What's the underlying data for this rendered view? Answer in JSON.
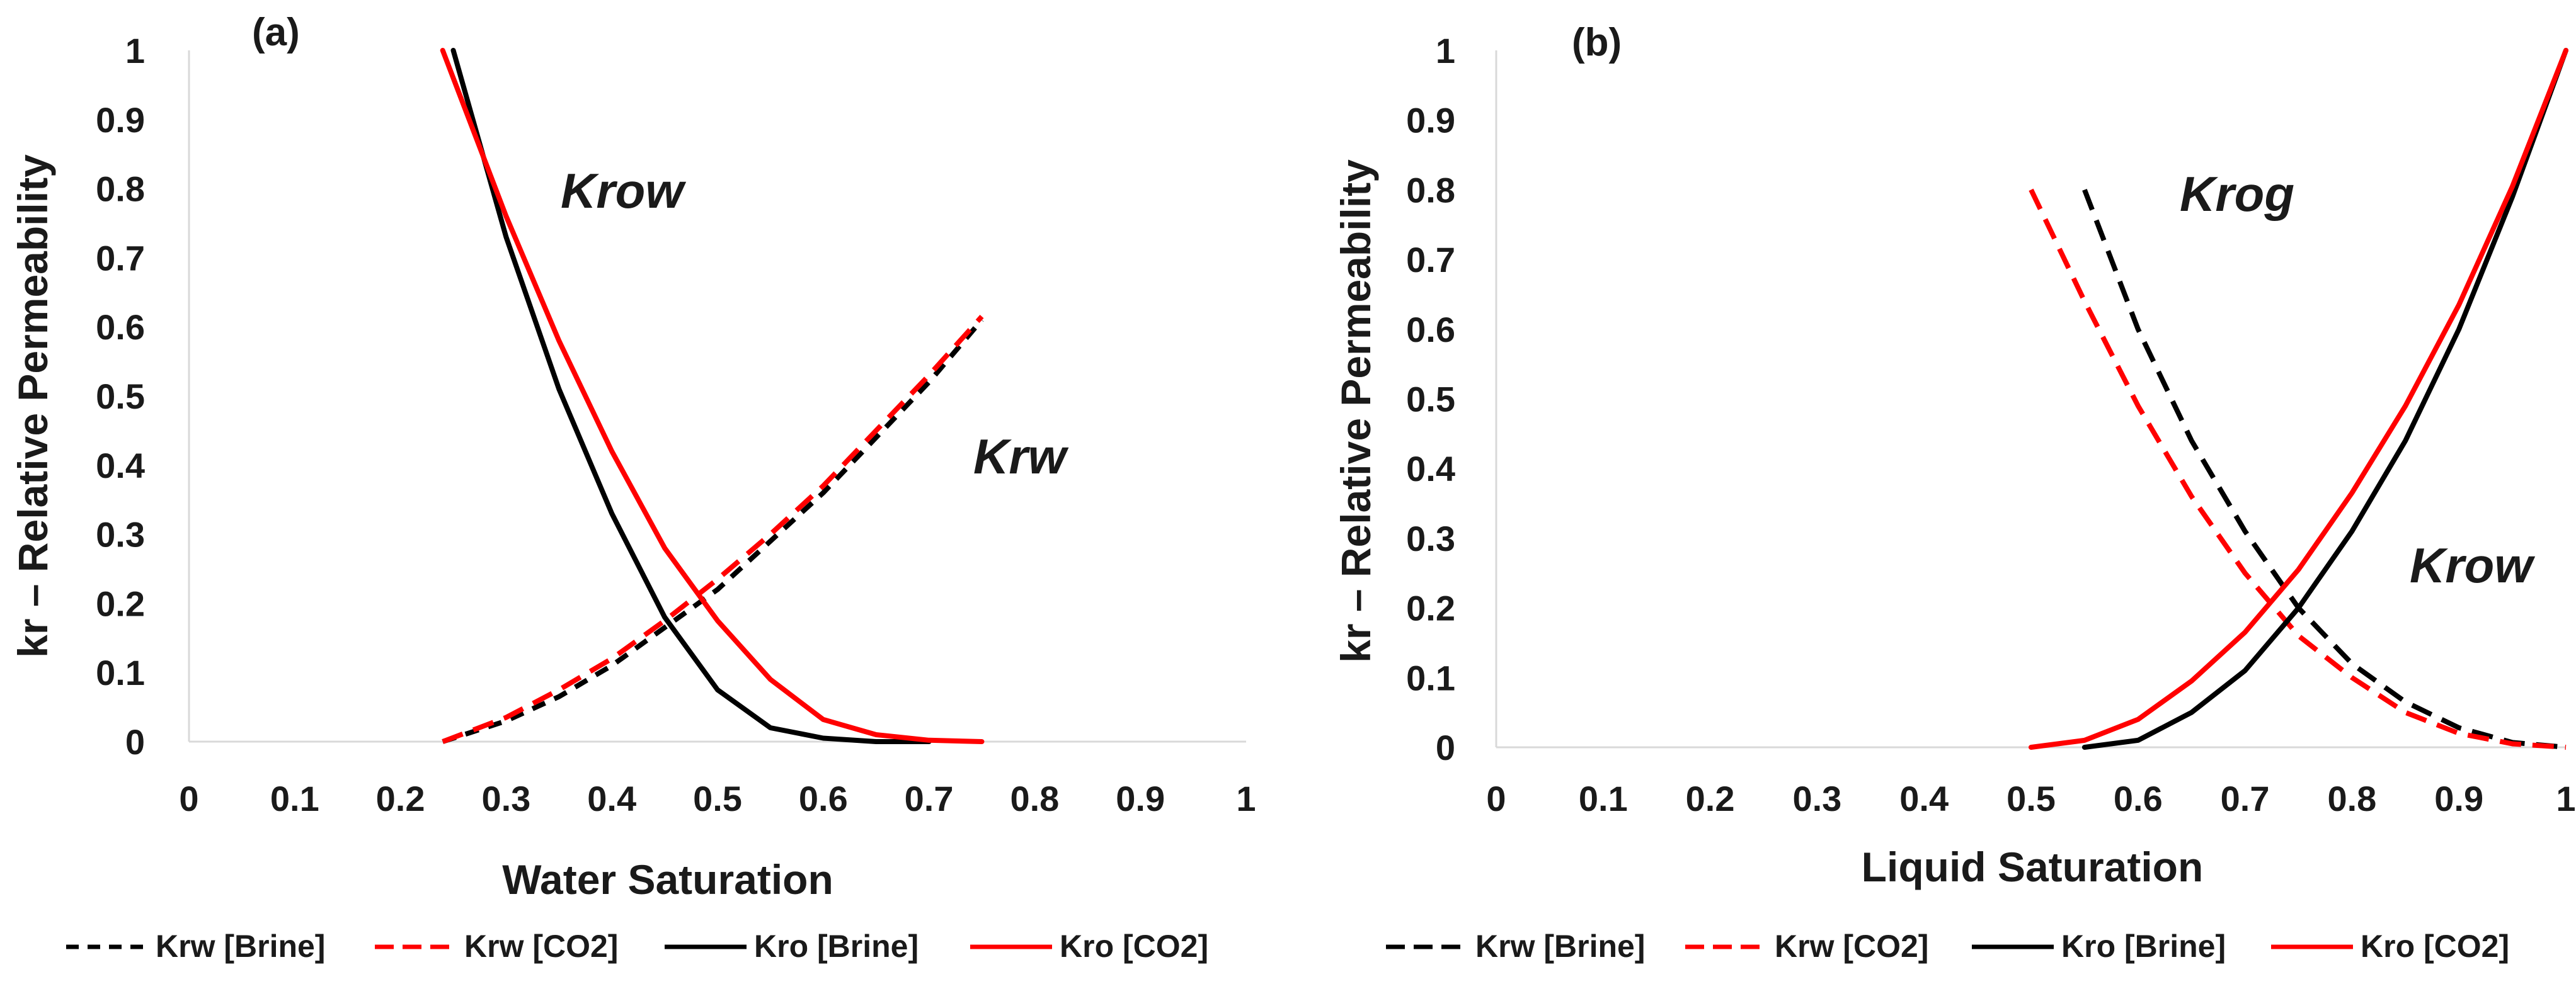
{
  "chart_data": [
    {
      "type": "line",
      "panel_label": "(a)",
      "xlabel": "Water Saturation",
      "ylabel": "kr – Relative Permeability",
      "xlim": [
        0,
        1
      ],
      "ylim": [
        0,
        1
      ],
      "x_ticks": [
        "0",
        "0.1",
        "0.2",
        "0.3",
        "0.4",
        "0.5",
        "0.6",
        "0.7",
        "0.8",
        "0.9",
        "1"
      ],
      "y_ticks": [
        "0",
        "0.1",
        "0.2",
        "0.3",
        "0.4",
        "0.5",
        "0.6",
        "0.7",
        "0.8",
        "0.9",
        "1"
      ],
      "grid": false,
      "annotations": [
        "Krow",
        "Krw"
      ],
      "legend_position": "bottom",
      "series": [
        {
          "name": "Krw [Brine]",
          "color": "#000000",
          "dashed": true,
          "x": [
            0.24,
            0.3,
            0.35,
            0.4,
            0.45,
            0.5,
            0.55,
            0.6,
            0.65,
            0.7,
            0.75
          ],
          "y": [
            0.0,
            0.03,
            0.065,
            0.11,
            0.165,
            0.22,
            0.29,
            0.36,
            0.44,
            0.52,
            0.61
          ]
        },
        {
          "name": "Krw [CO2]",
          "color": "#ff0000",
          "dashed": true,
          "x": [
            0.24,
            0.3,
            0.35,
            0.4,
            0.45,
            0.5,
            0.55,
            0.6,
            0.65,
            0.7,
            0.75
          ],
          "y": [
            0.0,
            0.035,
            0.075,
            0.12,
            0.175,
            0.235,
            0.3,
            0.37,
            0.45,
            0.53,
            0.615
          ]
        },
        {
          "name": "Kro [Brine]",
          "color": "#000000",
          "dashed": false,
          "x": [
            0.25,
            0.3,
            0.35,
            0.4,
            0.45,
            0.5,
            0.55,
            0.6,
            0.65,
            0.7
          ],
          "y": [
            1.0,
            0.73,
            0.51,
            0.33,
            0.18,
            0.075,
            0.02,
            0.005,
            0.0,
            0.0
          ]
        },
        {
          "name": "Kro [CO2]",
          "color": "#ff0000",
          "dashed": false,
          "x": [
            0.24,
            0.3,
            0.35,
            0.4,
            0.45,
            0.5,
            0.55,
            0.6,
            0.65,
            0.7,
            0.75
          ],
          "y": [
            1.0,
            0.76,
            0.58,
            0.42,
            0.28,
            0.175,
            0.09,
            0.032,
            0.01,
            0.002,
            0.0
          ]
        }
      ]
    },
    {
      "type": "line",
      "panel_label": "(b)",
      "xlabel": "Liquid Saturation",
      "ylabel": "kr – Relative Permeability",
      "xlim": [
        0,
        1
      ],
      "ylim": [
        0,
        1
      ],
      "x_ticks": [
        "0",
        "0.1",
        "0.2",
        "0.3",
        "0.4",
        "0.5",
        "0.6",
        "0.7",
        "0.8",
        "0.9",
        "1"
      ],
      "y_ticks": [
        "0",
        "0.1",
        "0.2",
        "0.3",
        "0.4",
        "0.5",
        "0.6",
        "0.7",
        "0.8",
        "0.9",
        "1"
      ],
      "grid": false,
      "annotations": [
        "Krog",
        "Krow"
      ],
      "legend_position": "bottom",
      "series": [
        {
          "name": "Krw [Brine]",
          "color": "#000000",
          "dashed": true,
          "x": [
            0.55,
            0.6,
            0.65,
            0.7,
            0.75,
            0.8,
            0.85,
            0.9,
            0.95,
            1.0
          ],
          "y": [
            0.8,
            0.6,
            0.44,
            0.31,
            0.2,
            0.12,
            0.065,
            0.028,
            0.007,
            0.0
          ]
        },
        {
          "name": "Krw [CO2]",
          "color": "#ff0000",
          "dashed": true,
          "x": [
            0.5,
            0.55,
            0.6,
            0.65,
            0.7,
            0.75,
            0.8,
            0.85,
            0.9,
            0.95,
            1.0
          ],
          "y": [
            0.8,
            0.64,
            0.49,
            0.36,
            0.25,
            0.16,
            0.1,
            0.05,
            0.02,
            0.005,
            0.0
          ]
        },
        {
          "name": "Kro [Brine]",
          "color": "#000000",
          "dashed": false,
          "x": [
            0.55,
            0.6,
            0.65,
            0.7,
            0.75,
            0.8,
            0.85,
            0.9,
            0.95,
            1.0
          ],
          "y": [
            0.0,
            0.01,
            0.05,
            0.11,
            0.2,
            0.31,
            0.44,
            0.6,
            0.79,
            1.0
          ]
        },
        {
          "name": "Kro [CO2]",
          "color": "#ff0000",
          "dashed": false,
          "x": [
            0.5,
            0.55,
            0.6,
            0.65,
            0.7,
            0.75,
            0.8,
            0.85,
            0.9,
            0.95,
            1.0
          ],
          "y": [
            0.0,
            0.01,
            0.04,
            0.095,
            0.165,
            0.255,
            0.365,
            0.49,
            0.635,
            0.805,
            1.0
          ]
        }
      ]
    }
  ]
}
